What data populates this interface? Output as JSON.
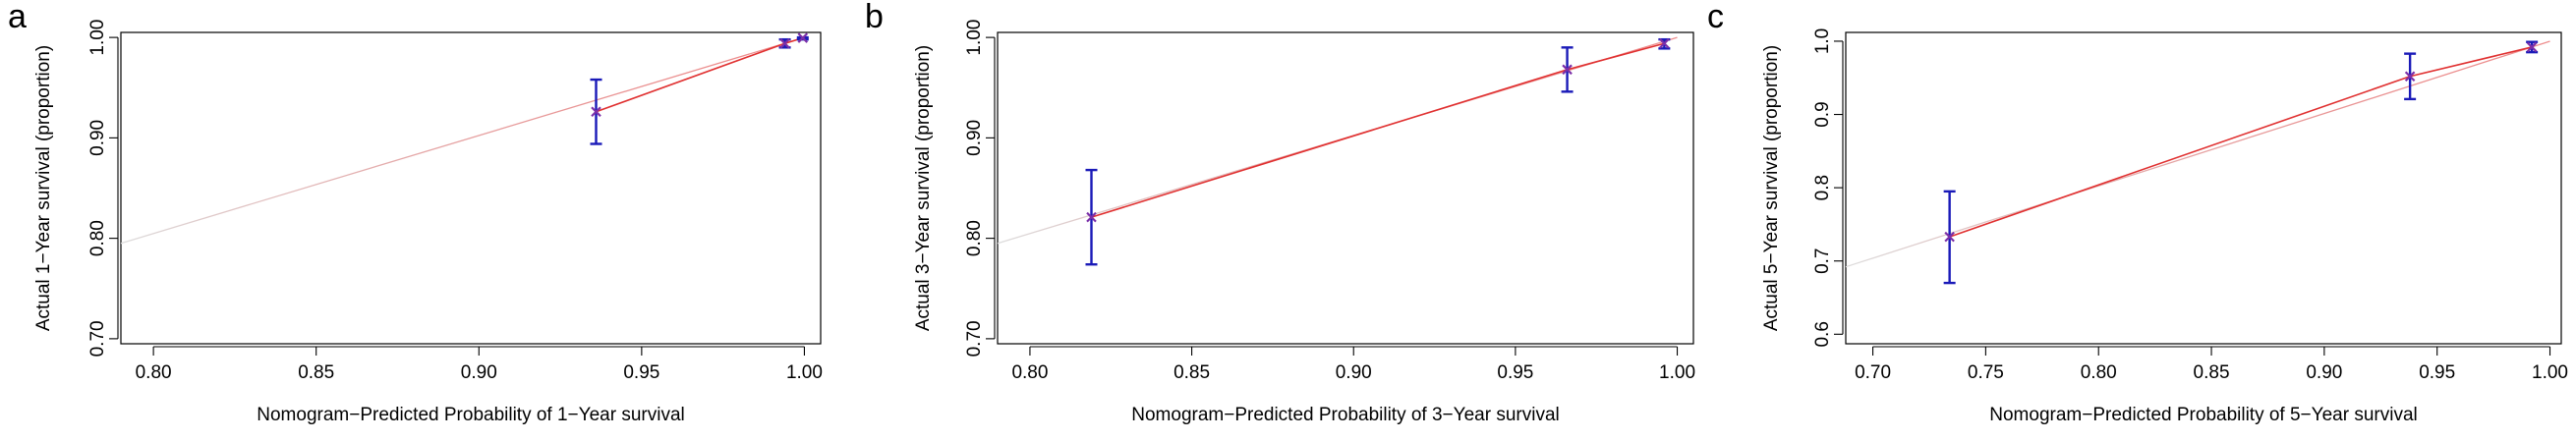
{
  "chart_data": [
    {
      "panel_label": "a",
      "type": "scatter",
      "xlabel": "Nomogram−Predicted Probability of 1−Year survival",
      "ylabel": "Actual 1−Year survival (proportion)",
      "xlim": [
        0.79,
        1.005
      ],
      "ylim": [
        0.695,
        1.005
      ],
      "xticks": [
        0.8,
        0.85,
        0.9,
        0.95,
        1.0
      ],
      "xtick_labels": [
        "0.80",
        "0.85",
        "0.90",
        "0.95",
        "1.00"
      ],
      "yticks": [
        0.7,
        0.8,
        0.9,
        1.0
      ],
      "ytick_labels": [
        "0.70",
        "0.80",
        "0.90",
        "1.00"
      ],
      "ideal_line": [
        [
          0.79,
          0.795
        ],
        [
          1.0,
          1.0
        ]
      ],
      "fitted_line": [
        [
          0.936,
          0.926
        ],
        [
          0.994,
          0.994
        ],
        [
          1.0,
          1.0
        ]
      ],
      "points": [
        {
          "x": 0.936,
          "y": 0.926,
          "lower": 0.894,
          "upper": 0.958
        },
        {
          "x": 0.994,
          "y": 0.994,
          "lower": 0.99,
          "upper": 0.998
        },
        {
          "x": 0.9995,
          "y": 0.9995,
          "lower": 0.998,
          "upper": 1.0
        }
      ],
      "colors": {
        "points": "#7b2fa8",
        "error_bars": "#1a1ab8",
        "fitted_line": "#e03030",
        "ideal_line": "#dddddd"
      },
      "grid": false,
      "legend": "none"
    },
    {
      "panel_label": "b",
      "type": "scatter",
      "xlabel": "Nomogram−Predicted Probability of 3−Year survival",
      "ylabel": "Actual 3−Year survival (proportion)",
      "xlim": [
        0.79,
        1.005
      ],
      "ylim": [
        0.695,
        1.005
      ],
      "xticks": [
        0.8,
        0.85,
        0.9,
        0.95,
        1.0
      ],
      "xtick_labels": [
        "0.80",
        "0.85",
        "0.90",
        "0.95",
        "1.00"
      ],
      "yticks": [
        0.7,
        0.8,
        0.9,
        1.0
      ],
      "ytick_labels": [
        "0.70",
        "0.80",
        "0.90",
        "1.00"
      ],
      "ideal_line": [
        [
          0.79,
          0.795
        ],
        [
          1.0,
          1.0
        ]
      ],
      "fitted_line": [
        [
          0.819,
          0.821
        ],
        [
          0.966,
          0.968
        ],
        [
          0.996,
          0.994
        ]
      ],
      "points": [
        {
          "x": 0.819,
          "y": 0.821,
          "lower": 0.774,
          "upper": 0.868
        },
        {
          "x": 0.966,
          "y": 0.968,
          "lower": 0.946,
          "upper": 0.99
        },
        {
          "x": 0.996,
          "y": 0.994,
          "lower": 0.989,
          "upper": 0.998
        }
      ],
      "colors": {
        "points": "#7b2fa8",
        "error_bars": "#1a1ab8",
        "fitted_line": "#e03030",
        "ideal_line": "#dddddd"
      },
      "grid": false,
      "legend": "none"
    },
    {
      "panel_label": "c",
      "type": "scatter",
      "xlabel": "Nomogram−Predicted Probability of 5−Year survival",
      "ylabel": "Actual 5−Year survival (proportion)",
      "xlim": [
        0.688,
        1.005
      ],
      "ylim": [
        0.587,
        1.012
      ],
      "xticks": [
        0.7,
        0.75,
        0.8,
        0.85,
        0.9,
        0.95,
        1.0
      ],
      "xtick_labels": [
        "0.70",
        "0.75",
        "0.80",
        "0.85",
        "0.90",
        "0.95",
        "1.00"
      ],
      "yticks": [
        0.6,
        0.7,
        0.8,
        0.9,
        1.0
      ],
      "ytick_labels": [
        "0.6",
        "0.7",
        "0.8",
        "0.9",
        "1.0"
      ],
      "ideal_line": [
        [
          0.688,
          0.692
        ],
        [
          1.0,
          1.0
        ]
      ],
      "fitted_line": [
        [
          0.734,
          0.733
        ],
        [
          0.938,
          0.952
        ],
        [
          0.992,
          0.992
        ]
      ],
      "points": [
        {
          "x": 0.734,
          "y": 0.733,
          "lower": 0.67,
          "upper": 0.795
        },
        {
          "x": 0.938,
          "y": 0.952,
          "lower": 0.921,
          "upper": 0.983
        },
        {
          "x": 0.992,
          "y": 0.992,
          "lower": 0.985,
          "upper": 0.999
        }
      ],
      "colors": {
        "points": "#7b2fa8",
        "error_bars": "#1a1ab8",
        "fitted_line": "#e03030",
        "ideal_line": "#dddddd"
      },
      "grid": false,
      "legend": "none"
    }
  ]
}
